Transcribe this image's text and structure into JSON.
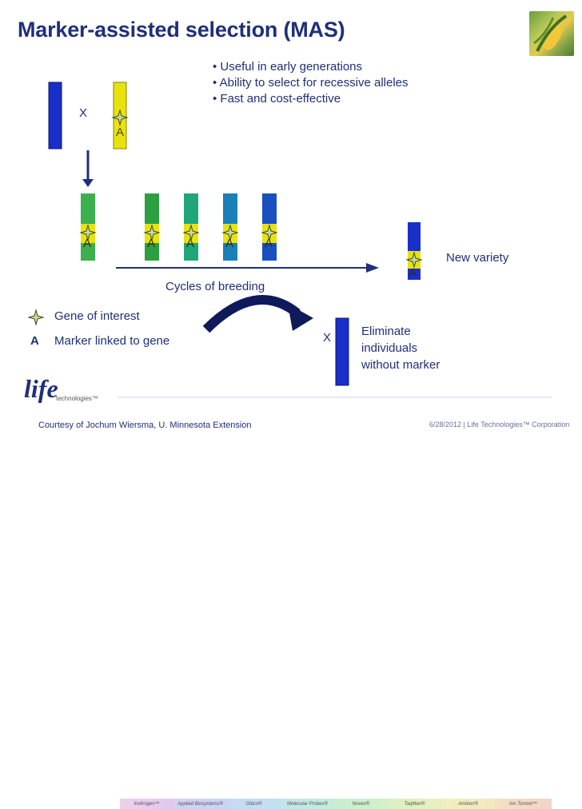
{
  "title": "Marker-assisted selection (MAS)",
  "bullets": [
    "• Useful in early generations",
    "• Ability to select for recessive alleles",
    "• Fast and cost-effective"
  ],
  "cross_symbol": "X",
  "marker_letter": "A",
  "cycles_label": "Cycles of breeding",
  "new_variety_label": "New variety",
  "eliminate_lines": [
    "Eliminate",
    "individuals",
    "without marker"
  ],
  "legend": {
    "gene_of_interest": "Gene of interest",
    "marker_symbol": "A",
    "marker_linked": "Marker linked to gene"
  },
  "logo": {
    "word": "life",
    "sub": "technologies™"
  },
  "brands": [
    "Invitrogen™",
    "Applied Biosystems®",
    "Gibco®",
    "Molecular Probes®",
    "Novex®",
    "TaqMan®",
    "Ambion®",
    "Ion Torrent™"
  ],
  "courtesy": "Courtesy of Jochum Wiersma, U. Minnesota Extension",
  "date_line": "6/28/2012  |  Life Technologies™ Corporation",
  "colors": {
    "title": "#1f2f7a",
    "blue_chrom": "#1a2fc8",
    "yellow_chrom": "#e8e20e",
    "green_chrom": "#3cb04c",
    "arrow": "#1f2f7a"
  }
}
